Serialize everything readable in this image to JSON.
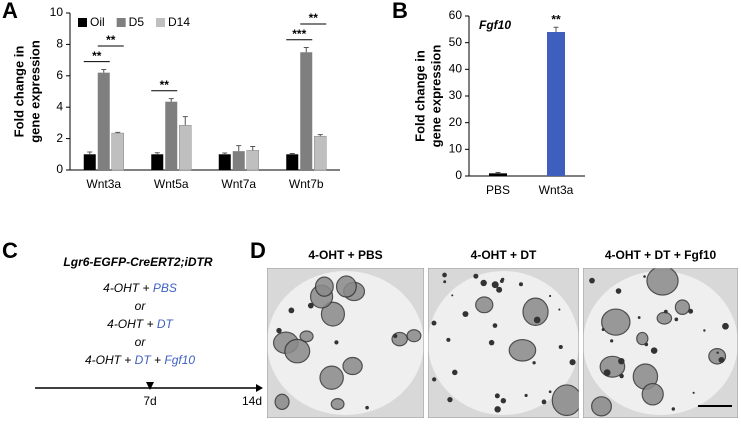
{
  "panel_labels": [
    "A",
    "B",
    "C",
    "D"
  ],
  "chart_data": [
    {
      "type": "bar",
      "ylabel": [
        "Fold change in",
        "gene expression"
      ],
      "categories": [
        "Wnt3a",
        "Wnt5a",
        "Wnt7a",
        "Wnt7b"
      ],
      "series": [
        {
          "name": "Oil",
          "color": "#000000",
          "values": [
            1,
            1,
            1,
            1
          ],
          "errors": [
            0.15,
            0.1,
            0.08,
            0.05
          ]
        },
        {
          "name": "D5",
          "color": "#7f7f7f",
          "values": [
            6.2,
            4.35,
            1.2,
            7.5
          ],
          "errors": [
            0.2,
            0.2,
            0.35,
            0.3
          ]
        },
        {
          "name": "D14",
          "color": "#bfbfbf",
          "values": [
            2.35,
            2.85,
            1.25,
            2.15
          ],
          "errors": [
            0.05,
            0.55,
            0.25,
            0.1
          ]
        }
      ],
      "ylim": [
        0,
        10
      ],
      "yticks": [
        0,
        2,
        4,
        6,
        8,
        10
      ],
      "legend": "top-left",
      "annotations": [
        {
          "text": "**",
          "category": 0,
          "pair": [
            0,
            1
          ]
        },
        {
          "text": "**",
          "category": 0,
          "pair": [
            1,
            2
          ]
        },
        {
          "text": "**",
          "category": 1,
          "pair": [
            0,
            1
          ]
        },
        {
          "text": "***",
          "category": 3,
          "pair": [
            0,
            1
          ]
        },
        {
          "text": "**",
          "category": 3,
          "pair": [
            1,
            2
          ]
        }
      ]
    },
    {
      "type": "bar",
      "title": "Fgf10",
      "ylabel": [
        "Fold change in",
        "gene expression"
      ],
      "categories": [
        "PBS",
        "Wnt3a"
      ],
      "values": [
        1,
        54
      ],
      "errors": [
        0.3,
        1.8
      ],
      "colors": [
        "#000000",
        "#3f5fbf"
      ],
      "ylim": [
        0,
        60
      ],
      "yticks": [
        0,
        10,
        20,
        30,
        40,
        50,
        60
      ],
      "annotations": [
        {
          "text": "**",
          "category": 1
        }
      ]
    }
  ],
  "diagram": {
    "title": "Lgr6-EGFP-CreERT2;iDTR",
    "lines": [
      [
        {
          "text": "4-OHT"
        },
        {
          "text": "+"
        },
        {
          "text": "PBS",
          "color": "#3f5fbf"
        }
      ],
      [
        {
          "text": "or"
        }
      ],
      [
        {
          "text": "4-OHT"
        },
        {
          "text": "+"
        },
        {
          "text": "DT",
          "color": "#3f5fbf"
        }
      ],
      [
        {
          "text": "or"
        }
      ],
      [
        {
          "text": "4-OHT"
        },
        {
          "text": "+"
        },
        {
          "text": "DT",
          "color": "#3f5fbf"
        },
        {
          "text": "+"
        },
        {
          "text": "Fgf10",
          "color": "#3f5fbf"
        }
      ]
    ],
    "timepoints": [
      "7d",
      "14d"
    ]
  },
  "micrographs": [
    {
      "title": "4-OHT + PBS"
    },
    {
      "title": "4-OHT + DT"
    },
    {
      "title": "4-OHT + DT + Fgf10"
    }
  ]
}
